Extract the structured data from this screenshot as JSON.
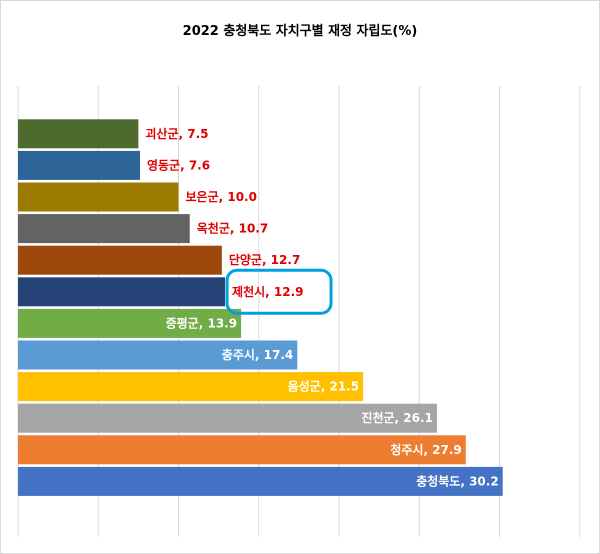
{
  "chart_data": {
    "type": "bar",
    "orientation": "horizontal",
    "title": "2022 충청북도 자치구별 재정 자립도(%)",
    "xlim": [
      0,
      35
    ],
    "grid": true,
    "categories": [
      "괴산군",
      "영동군",
      "보은군",
      "옥천군",
      "단양군",
      "제천시",
      "증평군",
      "충주시",
      "음성군",
      "진천군",
      "청주시",
      "충청북도"
    ],
    "values": [
      7.5,
      7.6,
      10.0,
      10.7,
      12.7,
      12.9,
      13.9,
      17.4,
      21.5,
      26.1,
      27.9,
      30.2
    ],
    "data_labels": [
      "괴산군, 7.5",
      "영동군, 7.6",
      "보은군, 10.0",
      "옥천군, 10.7",
      "단양군, 12.7",
      "제천시, 12.9",
      "증평군, 13.9",
      "충주시, 17.4",
      "음성군, 21.5",
      "진천군, 26.1",
      "청주시, 27.9",
      "충청북도, 30.2"
    ],
    "bar_colors": [
      "#4e6b2f",
      "#2d6599",
      "#9c7a00",
      "#636363",
      "#9e480e",
      "#264478",
      "#70ad47",
      "#5b9bd5",
      "#ffc000",
      "#a5a5a5",
      "#ed7d31",
      "#4472c4"
    ],
    "label_inside": [
      false,
      false,
      false,
      false,
      false,
      false,
      true,
      true,
      true,
      true,
      true,
      true
    ],
    "label_colors": [
      "#e00000",
      "#e00000",
      "#e00000",
      "#e00000",
      "#e00000",
      "#e00000",
      "#ffffff",
      "#ffffff",
      "#ffffff",
      "#ffffff",
      "#ffffff",
      "#ffffff"
    ],
    "highlighted_category": "제천시",
    "highlight_color": "#00a0e0"
  }
}
